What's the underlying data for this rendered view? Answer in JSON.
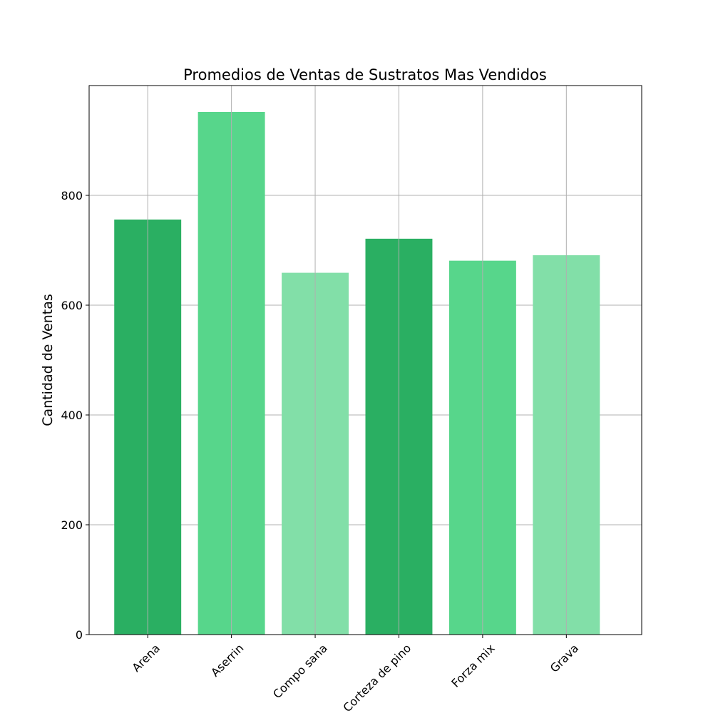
{
  "chart_data": {
    "type": "bar",
    "title": "Promedios de Ventas de Sustratos Mas Vendidos",
    "xlabel": "",
    "ylabel": "Cantidad de Ventas",
    "categories": [
      "Arena",
      "Aserrin",
      "Compo sana",
      "Corteza de pino",
      "Forza mix",
      "Grava"
    ],
    "values": [
      756,
      952,
      659,
      721,
      681,
      691
    ],
    "ylim": [
      0,
      1000
    ],
    "yticks": [
      0,
      200,
      400,
      600,
      800
    ],
    "grid": true,
    "bar_colors": [
      "#2aaf62",
      "#57d68b",
      "#82dfa8",
      "#2aaf62",
      "#57d68b",
      "#82dfa8"
    ],
    "grid_color": "#b0b0b0",
    "x_tick_rotation_deg": 45
  }
}
